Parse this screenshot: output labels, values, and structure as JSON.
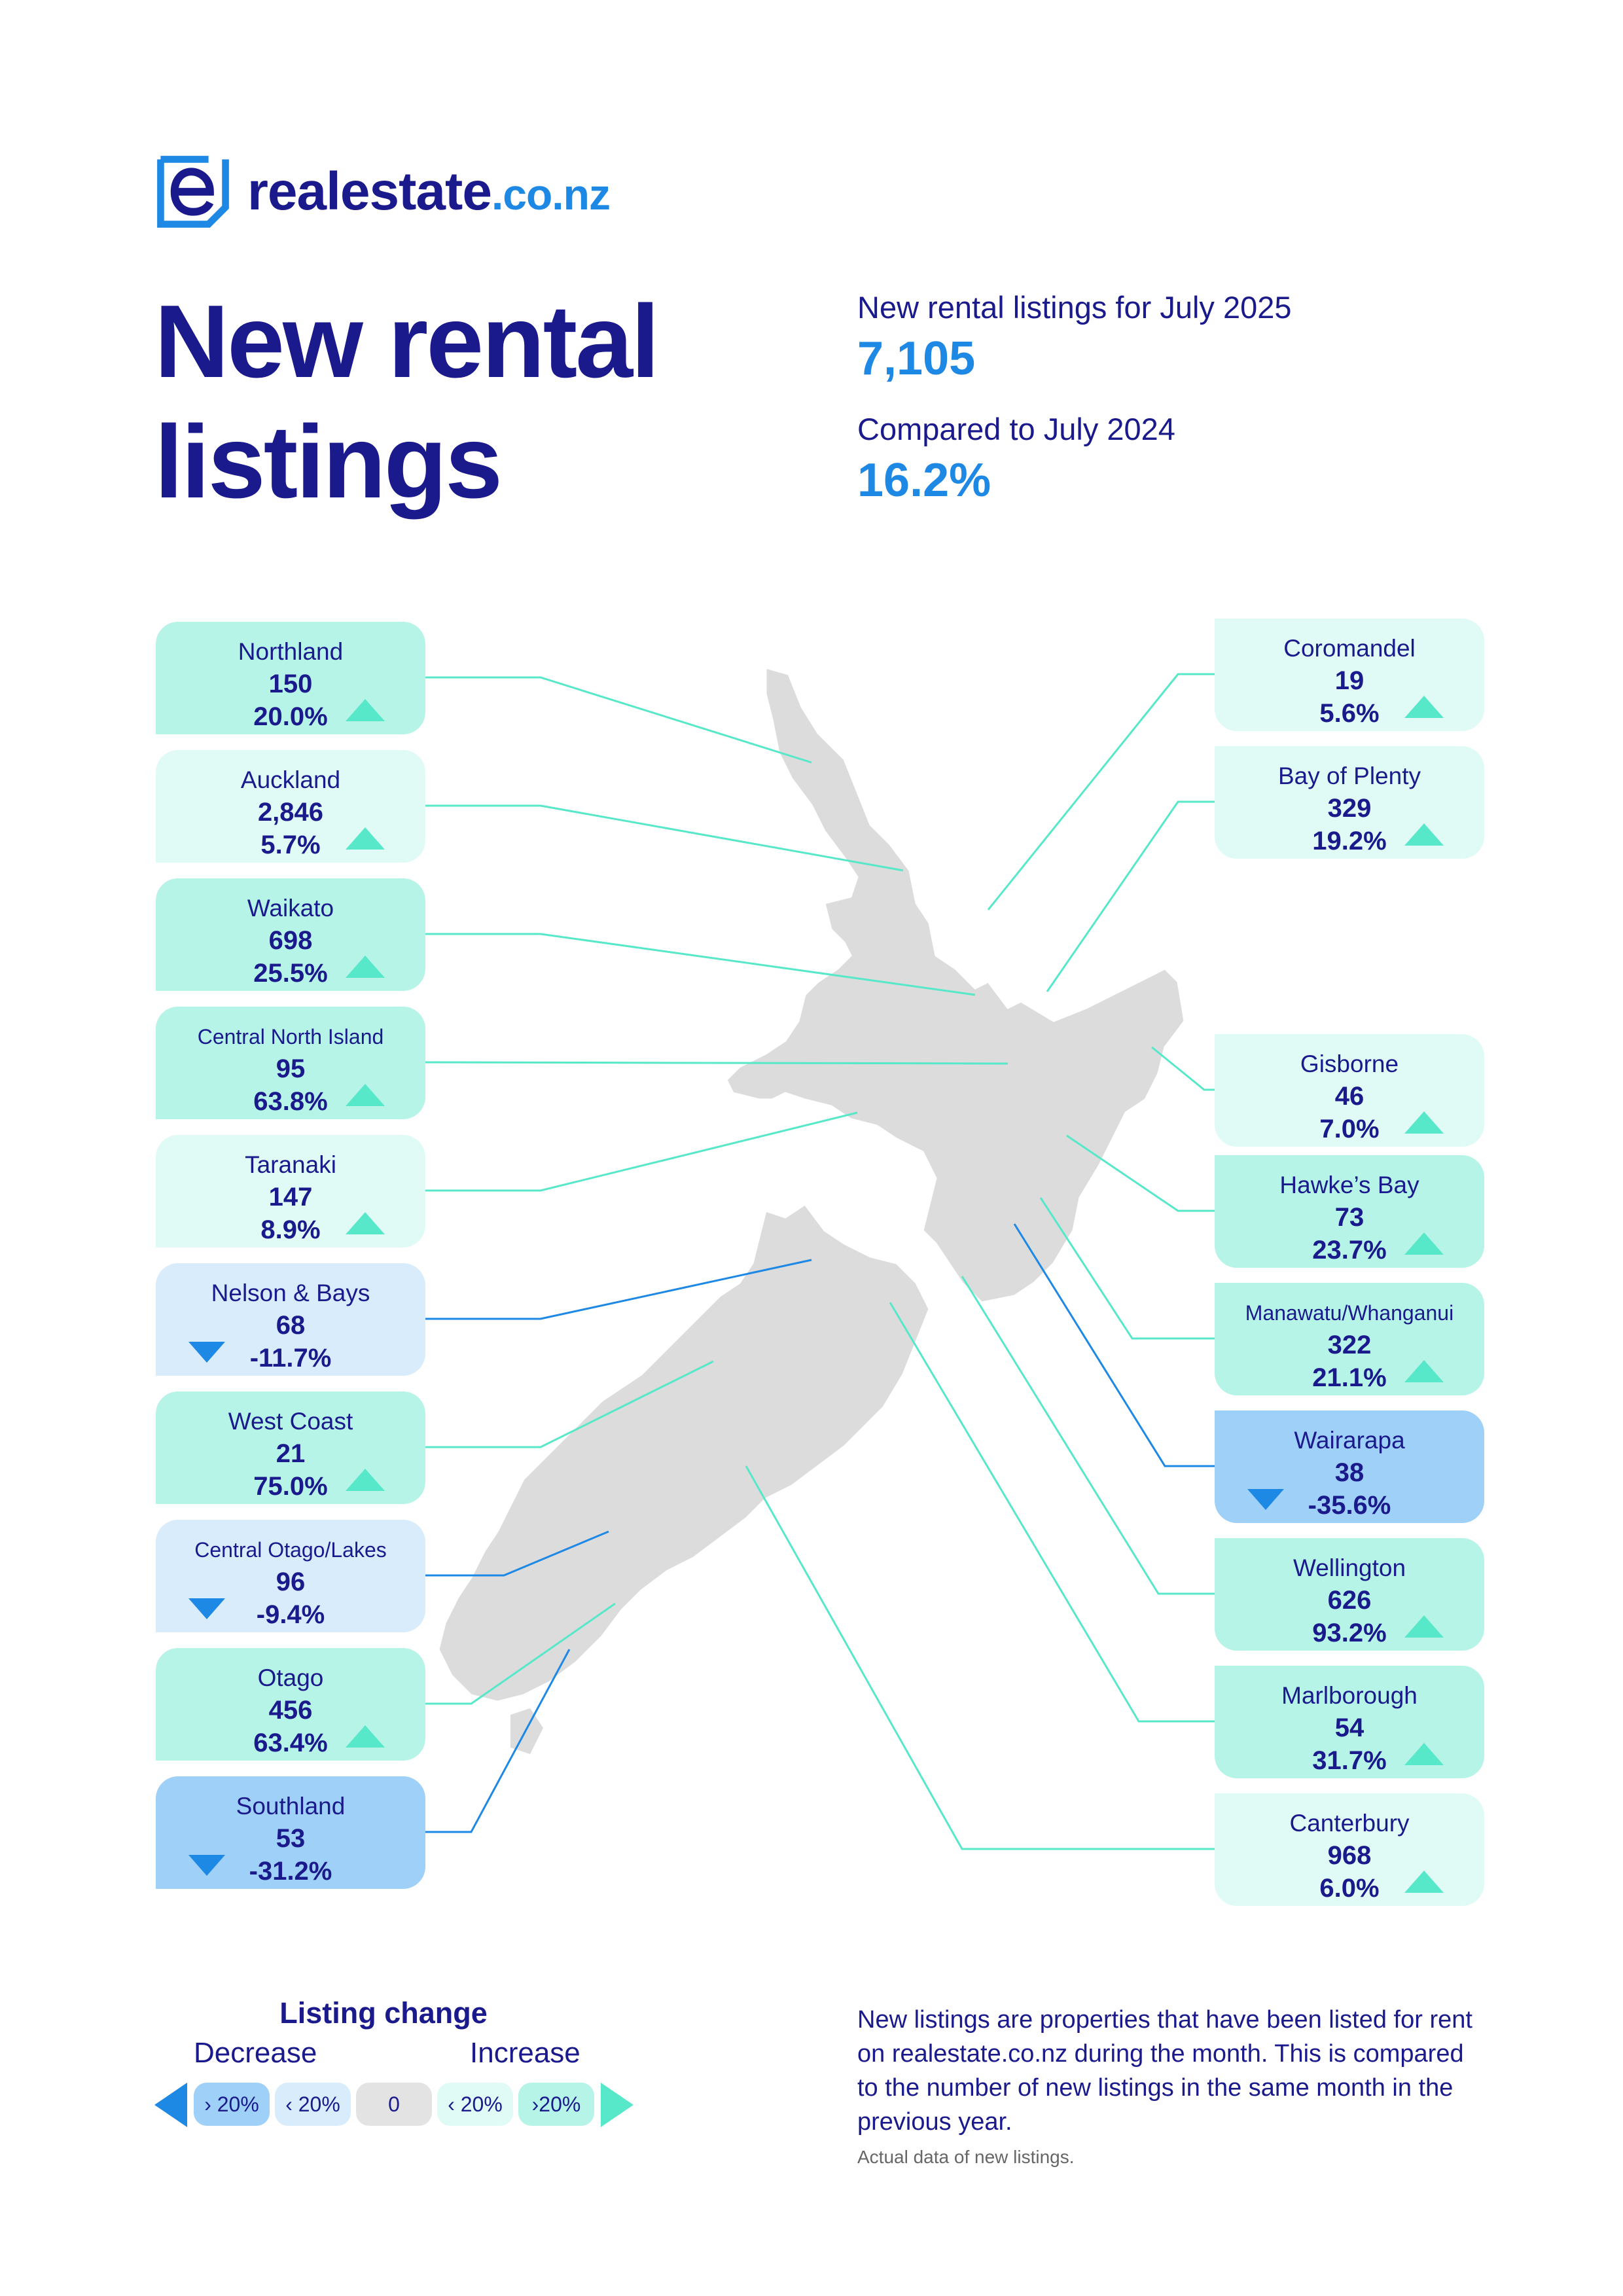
{
  "brand": {
    "name": "realestate",
    "tld": ".co.nz"
  },
  "title_line1": "New rental",
  "title_line2": "listings",
  "summary": {
    "listings_label": "New rental listings for July 2025",
    "listings_value": "7,105",
    "compare_label": "Compared to July 2024",
    "compare_value": "16.2%"
  },
  "colors": {
    "brand_navy": "#1a1a8c",
    "brand_blue": "#1e88e5",
    "increase_arrow": "#57e8c9",
    "increase_over_20": "#b6f4e7",
    "increase_under_20": "#e0fbf5",
    "decrease_under_20": "#d8ecfb",
    "decrease_over_20": "#9fd0f7",
    "land": "#dcdcdc"
  },
  "regions": [
    {
      "name": "Northland",
      "value": "150",
      "change": "20.0%",
      "direction": "up",
      "band": "up20"
    },
    {
      "name": "Auckland",
      "value": "2,846",
      "change": "5.7%",
      "direction": "up",
      "band": "up"
    },
    {
      "name": "Waikato",
      "value": "698",
      "change": "25.5%",
      "direction": "up",
      "band": "up20"
    },
    {
      "name": "Central North Island",
      "value": "95",
      "change": "63.8%",
      "direction": "up",
      "band": "up20"
    },
    {
      "name": "Taranaki",
      "value": "147",
      "change": "8.9%",
      "direction": "up",
      "band": "up"
    },
    {
      "name": "Nelson & Bays",
      "value": "68",
      "change": "-11.7%",
      "direction": "down",
      "band": "dn"
    },
    {
      "name": "West Coast",
      "value": "21",
      "change": "75.0%",
      "direction": "up",
      "band": "up20"
    },
    {
      "name": "Central Otago/Lakes",
      "value": "96",
      "change": "-9.4%",
      "direction": "down",
      "band": "dn"
    },
    {
      "name": "Otago",
      "value": "456",
      "change": "63.4%",
      "direction": "up",
      "band": "up20"
    },
    {
      "name": "Southland",
      "value": "53",
      "change": "-31.2%",
      "direction": "down",
      "band": "dn20"
    },
    {
      "name": "Coromandel",
      "value": "19",
      "change": "5.6%",
      "direction": "up",
      "band": "up"
    },
    {
      "name": "Bay of Plenty",
      "value": "329",
      "change": "19.2%",
      "direction": "up",
      "band": "up"
    },
    {
      "name": "Gisborne",
      "value": "46",
      "change": "7.0%",
      "direction": "up",
      "band": "up"
    },
    {
      "name": "Hawke’s Bay",
      "value": "73",
      "change": "23.7%",
      "direction": "up",
      "band": "up20"
    },
    {
      "name": "Manawatu/Whanganui",
      "value": "322",
      "change": "21.1%",
      "direction": "up",
      "band": "up20"
    },
    {
      "name": "Wairarapa",
      "value": "38",
      "change": "-35.6%",
      "direction": "down",
      "band": "dn20"
    },
    {
      "name": "Wellington",
      "value": "626",
      "change": "93.2%",
      "direction": "up",
      "band": "up20"
    },
    {
      "name": "Marlborough",
      "value": "54",
      "change": "31.7%",
      "direction": "up",
      "band": "up20"
    },
    {
      "name": "Canterbury",
      "value": "968",
      "change": "6.0%",
      "direction": "up",
      "band": "up"
    }
  ],
  "legend": {
    "title": "Listing change",
    "decrease": "Decrease",
    "increase": "Increase",
    "pills": [
      "› 20%",
      "‹ 20%",
      "0",
      "‹ 20%",
      "›20%"
    ]
  },
  "note": "New listings are properties that have been listed for rent on realestate.co.nz during the month. This is compared to the number of new listings in the same month in the previous year.",
  "note_small": "Actual data of new listings."
}
